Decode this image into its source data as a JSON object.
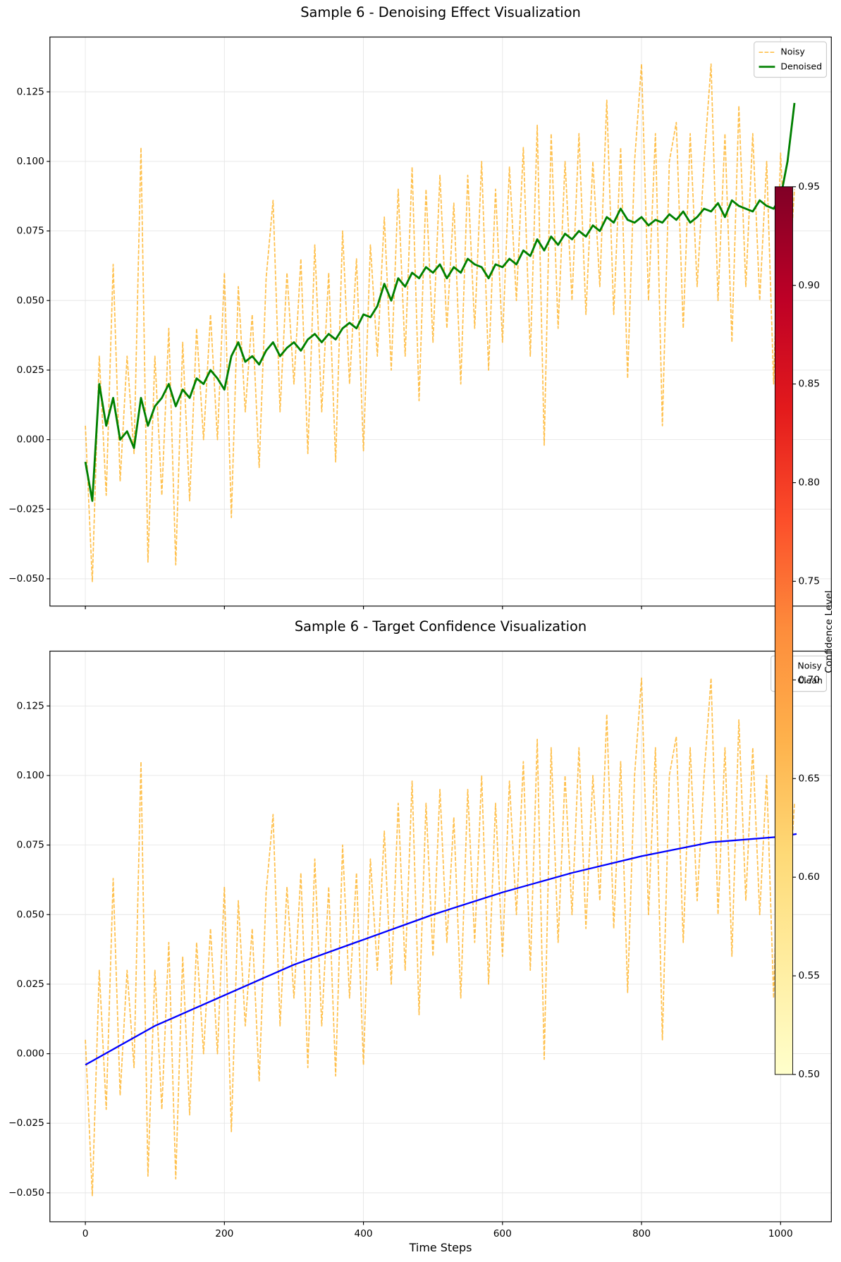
{
  "chart_data": [
    {
      "type": "line",
      "title": "Sample 6 - Denoising Effect Visualization",
      "xlim": [
        -51,
        1073
      ],
      "ylim": [
        -0.0598,
        0.1447
      ],
      "xticks": [
        0,
        200,
        400,
        600,
        800,
        1000
      ],
      "xtick_labels": false,
      "yticks": [
        {
          "value": -0.05,
          "label": "−0.050"
        },
        {
          "value": -0.025,
          "label": "−0.025"
        },
        {
          "value": 0,
          "label": "0.000"
        },
        {
          "value": 0.025,
          "label": "0.025"
        },
        {
          "value": 0.05,
          "label": "0.050"
        },
        {
          "value": 0.075,
          "label": "0.075"
        },
        {
          "value": 0.1,
          "label": "0.100"
        },
        {
          "value": 0.125,
          "label": "0.125"
        }
      ],
      "grid": true,
      "legend": "upper right",
      "series": [
        {
          "name": "Noisy",
          "color": "orange",
          "alpha": 0.7,
          "dashed": true,
          "linewidth": 1.5,
          "x": [
            0,
            10,
            20,
            30,
            40,
            50,
            60,
            70,
            80,
            90,
            100,
            110,
            120,
            130,
            140,
            150,
            160,
            170,
            180,
            190,
            200,
            210,
            220,
            230,
            240,
            250,
            260,
            270,
            280,
            290,
            300,
            310,
            320,
            330,
            340,
            350,
            360,
            370,
            380,
            390,
            400,
            410,
            420,
            430,
            440,
            450,
            460,
            470,
            480,
            490,
            500,
            510,
            520,
            530,
            540,
            550,
            560,
            570,
            580,
            590,
            600,
            610,
            620,
            630,
            640,
            650,
            660,
            670,
            680,
            690,
            700,
            710,
            720,
            730,
            740,
            750,
            760,
            770,
            780,
            790,
            800,
            810,
            820,
            830,
            840,
            850,
            860,
            870,
            880,
            890,
            900,
            910,
            920,
            930,
            940,
            950,
            960,
            970,
            980,
            990,
            1000,
            1010,
            1020
          ],
          "values": [
            0.005,
            -0.051,
            0.03,
            -0.02,
            0.063,
            -0.015,
            0.03,
            -0.005,
            0.105,
            -0.044,
            0.03,
            -0.02,
            0.04,
            -0.045,
            0.035,
            -0.022,
            0.04,
            0.0,
            0.045,
            0.0,
            0.06,
            -0.028,
            0.055,
            0.01,
            0.045,
            -0.01,
            0.058,
            0.086,
            0.01,
            0.06,
            0.02,
            0.065,
            -0.005,
            0.07,
            0.01,
            0.06,
            -0.008,
            0.075,
            0.02,
            0.065,
            -0.004,
            0.07,
            0.03,
            0.08,
            0.025,
            0.09,
            0.03,
            0.098,
            0.014,
            0.09,
            0.035,
            0.095,
            0.04,
            0.085,
            0.02,
            0.095,
            0.04,
            0.1,
            0.025,
            0.09,
            0.035,
            0.098,
            0.05,
            0.105,
            0.03,
            0.113,
            -0.002,
            0.11,
            0.04,
            0.1,
            0.05,
            0.11,
            0.045,
            0.1,
            0.055,
            0.122,
            0.045,
            0.105,
            0.022,
            0.1,
            0.135,
            0.05,
            0.11,
            0.005,
            0.1,
            0.114,
            0.04,
            0.11,
            0.055,
            0.1,
            0.135,
            0.05,
            0.11,
            0.035,
            0.12,
            0.055,
            0.11,
            0.05,
            0.1,
            0.02,
            0.103,
            0.05,
            0.09
          ]
        },
        {
          "name": "Denoised",
          "color": "green",
          "alpha": 1,
          "dashed": false,
          "linewidth": 2.5,
          "x": [
            0,
            10,
            20,
            30,
            40,
            50,
            60,
            70,
            80,
            90,
            100,
            110,
            120,
            130,
            140,
            150,
            160,
            170,
            180,
            190,
            200,
            210,
            220,
            230,
            240,
            250,
            260,
            270,
            280,
            290,
            300,
            310,
            320,
            330,
            340,
            350,
            360,
            370,
            380,
            390,
            400,
            410,
            420,
            430,
            440,
            450,
            460,
            470,
            480,
            490,
            500,
            510,
            520,
            530,
            540,
            550,
            560,
            570,
            580,
            590,
            600,
            610,
            620,
            630,
            640,
            650,
            660,
            670,
            680,
            690,
            700,
            710,
            720,
            730,
            740,
            750,
            760,
            770,
            780,
            790,
            800,
            810,
            820,
            830,
            840,
            850,
            860,
            870,
            880,
            890,
            900,
            910,
            920,
            930,
            940,
            950,
            960,
            970,
            980,
            990,
            1000,
            1010,
            1020
          ],
          "values": [
            -0.008,
            -0.022,
            0.02,
            0.005,
            0.015,
            0.0,
            0.003,
            -0.003,
            0.015,
            0.005,
            0.012,
            0.015,
            0.02,
            0.012,
            0.018,
            0.015,
            0.022,
            0.02,
            0.025,
            0.022,
            0.018,
            0.03,
            0.035,
            0.028,
            0.03,
            0.027,
            0.032,
            0.035,
            0.03,
            0.033,
            0.035,
            0.032,
            0.036,
            0.038,
            0.035,
            0.038,
            0.036,
            0.04,
            0.042,
            0.04,
            0.045,
            0.044,
            0.048,
            0.056,
            0.05,
            0.058,
            0.055,
            0.06,
            0.058,
            0.062,
            0.06,
            0.063,
            0.058,
            0.062,
            0.06,
            0.065,
            0.063,
            0.062,
            0.058,
            0.063,
            0.062,
            0.065,
            0.063,
            0.068,
            0.066,
            0.072,
            0.068,
            0.073,
            0.07,
            0.074,
            0.072,
            0.075,
            0.073,
            0.077,
            0.075,
            0.08,
            0.078,
            0.083,
            0.079,
            0.078,
            0.08,
            0.077,
            0.079,
            0.078,
            0.081,
            0.079,
            0.082,
            0.078,
            0.08,
            0.083,
            0.082,
            0.085,
            0.08,
            0.086,
            0.084,
            0.083,
            0.082,
            0.086,
            0.084,
            0.083,
            0.087,
            0.1,
            0.121
          ]
        }
      ]
    },
    {
      "type": "line",
      "title": "Sample 6 - Target Confidence Visualization",
      "x_label": "Time Steps",
      "xlim": [
        -51,
        1073
      ],
      "ylim": [
        -0.0604,
        0.1447
      ],
      "xticks": [
        0,
        200,
        400,
        600,
        800,
        1000
      ],
      "xtick_labels": true,
      "yticks": [
        {
          "value": -0.05,
          "label": "−0.050"
        },
        {
          "value": -0.025,
          "label": "−0.025"
        },
        {
          "value": 0,
          "label": "0.000"
        },
        {
          "value": 0.025,
          "label": "0.025"
        },
        {
          "value": 0.05,
          "label": "0.050"
        },
        {
          "value": 0.075,
          "label": "0.075"
        },
        {
          "value": 0.1,
          "label": "0.100"
        },
        {
          "value": 0.125,
          "label": "0.125"
        }
      ],
      "grid": true,
      "legend": "upper right",
      "series": [
        {
          "name": "Noisy",
          "color": "orange",
          "alpha": 0.7,
          "dashed": true,
          "linewidth": 1.5,
          "x": [
            0,
            10,
            20,
            30,
            40,
            50,
            60,
            70,
            80,
            90,
            100,
            110,
            120,
            130,
            140,
            150,
            160,
            170,
            180,
            190,
            200,
            210,
            220,
            230,
            240,
            250,
            260,
            270,
            280,
            290,
            300,
            310,
            320,
            330,
            340,
            350,
            360,
            370,
            380,
            390,
            400,
            410,
            420,
            430,
            440,
            450,
            460,
            470,
            480,
            490,
            500,
            510,
            520,
            530,
            540,
            550,
            560,
            570,
            580,
            590,
            600,
            610,
            620,
            630,
            640,
            650,
            660,
            670,
            680,
            690,
            700,
            710,
            720,
            730,
            740,
            750,
            760,
            770,
            780,
            790,
            800,
            810,
            820,
            830,
            840,
            850,
            860,
            870,
            880,
            890,
            900,
            910,
            920,
            930,
            940,
            950,
            960,
            970,
            980,
            990,
            1000,
            1010,
            1020
          ],
          "values": [
            0.005,
            -0.051,
            0.03,
            -0.02,
            0.063,
            -0.015,
            0.03,
            -0.005,
            0.105,
            -0.044,
            0.03,
            -0.02,
            0.04,
            -0.045,
            0.035,
            -0.022,
            0.04,
            0.0,
            0.045,
            0.0,
            0.06,
            -0.028,
            0.055,
            0.01,
            0.045,
            -0.01,
            0.058,
            0.086,
            0.01,
            0.06,
            0.02,
            0.065,
            -0.005,
            0.07,
            0.01,
            0.06,
            -0.008,
            0.075,
            0.02,
            0.065,
            -0.004,
            0.07,
            0.03,
            0.08,
            0.025,
            0.09,
            0.03,
            0.098,
            0.014,
            0.09,
            0.035,
            0.095,
            0.04,
            0.085,
            0.02,
            0.095,
            0.04,
            0.1,
            0.025,
            0.09,
            0.035,
            0.098,
            0.05,
            0.105,
            0.03,
            0.113,
            -0.002,
            0.11,
            0.04,
            0.1,
            0.05,
            0.11,
            0.045,
            0.1,
            0.055,
            0.122,
            0.045,
            0.105,
            0.022,
            0.1,
            0.135,
            0.05,
            0.11,
            0.005,
            0.1,
            0.114,
            0.04,
            0.11,
            0.055,
            0.1,
            0.135,
            0.05,
            0.11,
            0.035,
            0.12,
            0.055,
            0.11,
            0.05,
            0.1,
            0.02,
            0.103,
            0.05,
            0.09
          ]
        },
        {
          "name": "Clean",
          "color": "blue",
          "alpha": 1,
          "dashed": false,
          "linewidth": 2,
          "x": [
            0,
            100,
            200,
            300,
            400,
            500,
            600,
            700,
            800,
            900,
            1000,
            1023
          ],
          "values": [
            -0.004,
            0.01,
            0.021,
            0.032,
            0.041,
            0.05,
            0.058,
            0.065,
            0.071,
            0.076,
            0.078,
            0.079
          ]
        }
      ],
      "colorbar": {
        "label": "Confidence Level",
        "lim": [
          0.5,
          0.95
        ],
        "colors": [
          "#ffffcc",
          "#ffeda0",
          "#fed976",
          "#feb24c",
          "#fd8d3c",
          "#fc4e2a",
          "#e31a1c",
          "#bd0026",
          "#800026"
        ],
        "ticks": [
          {
            "value": 0.5,
            "label": "0.50"
          },
          {
            "value": 0.55,
            "label": "0.55"
          },
          {
            "value": 0.6,
            "label": "0.60"
          },
          {
            "value": 0.65,
            "label": "0.65"
          },
          {
            "value": 0.7,
            "label": "0.70"
          },
          {
            "value": 0.75,
            "label": "0.75"
          },
          {
            "value": 0.8,
            "label": "0.80"
          },
          {
            "value": 0.85,
            "label": "0.85"
          },
          {
            "value": 0.9,
            "label": "0.90"
          },
          {
            "value": 0.95,
            "label": "0.95"
          }
        ]
      }
    }
  ]
}
